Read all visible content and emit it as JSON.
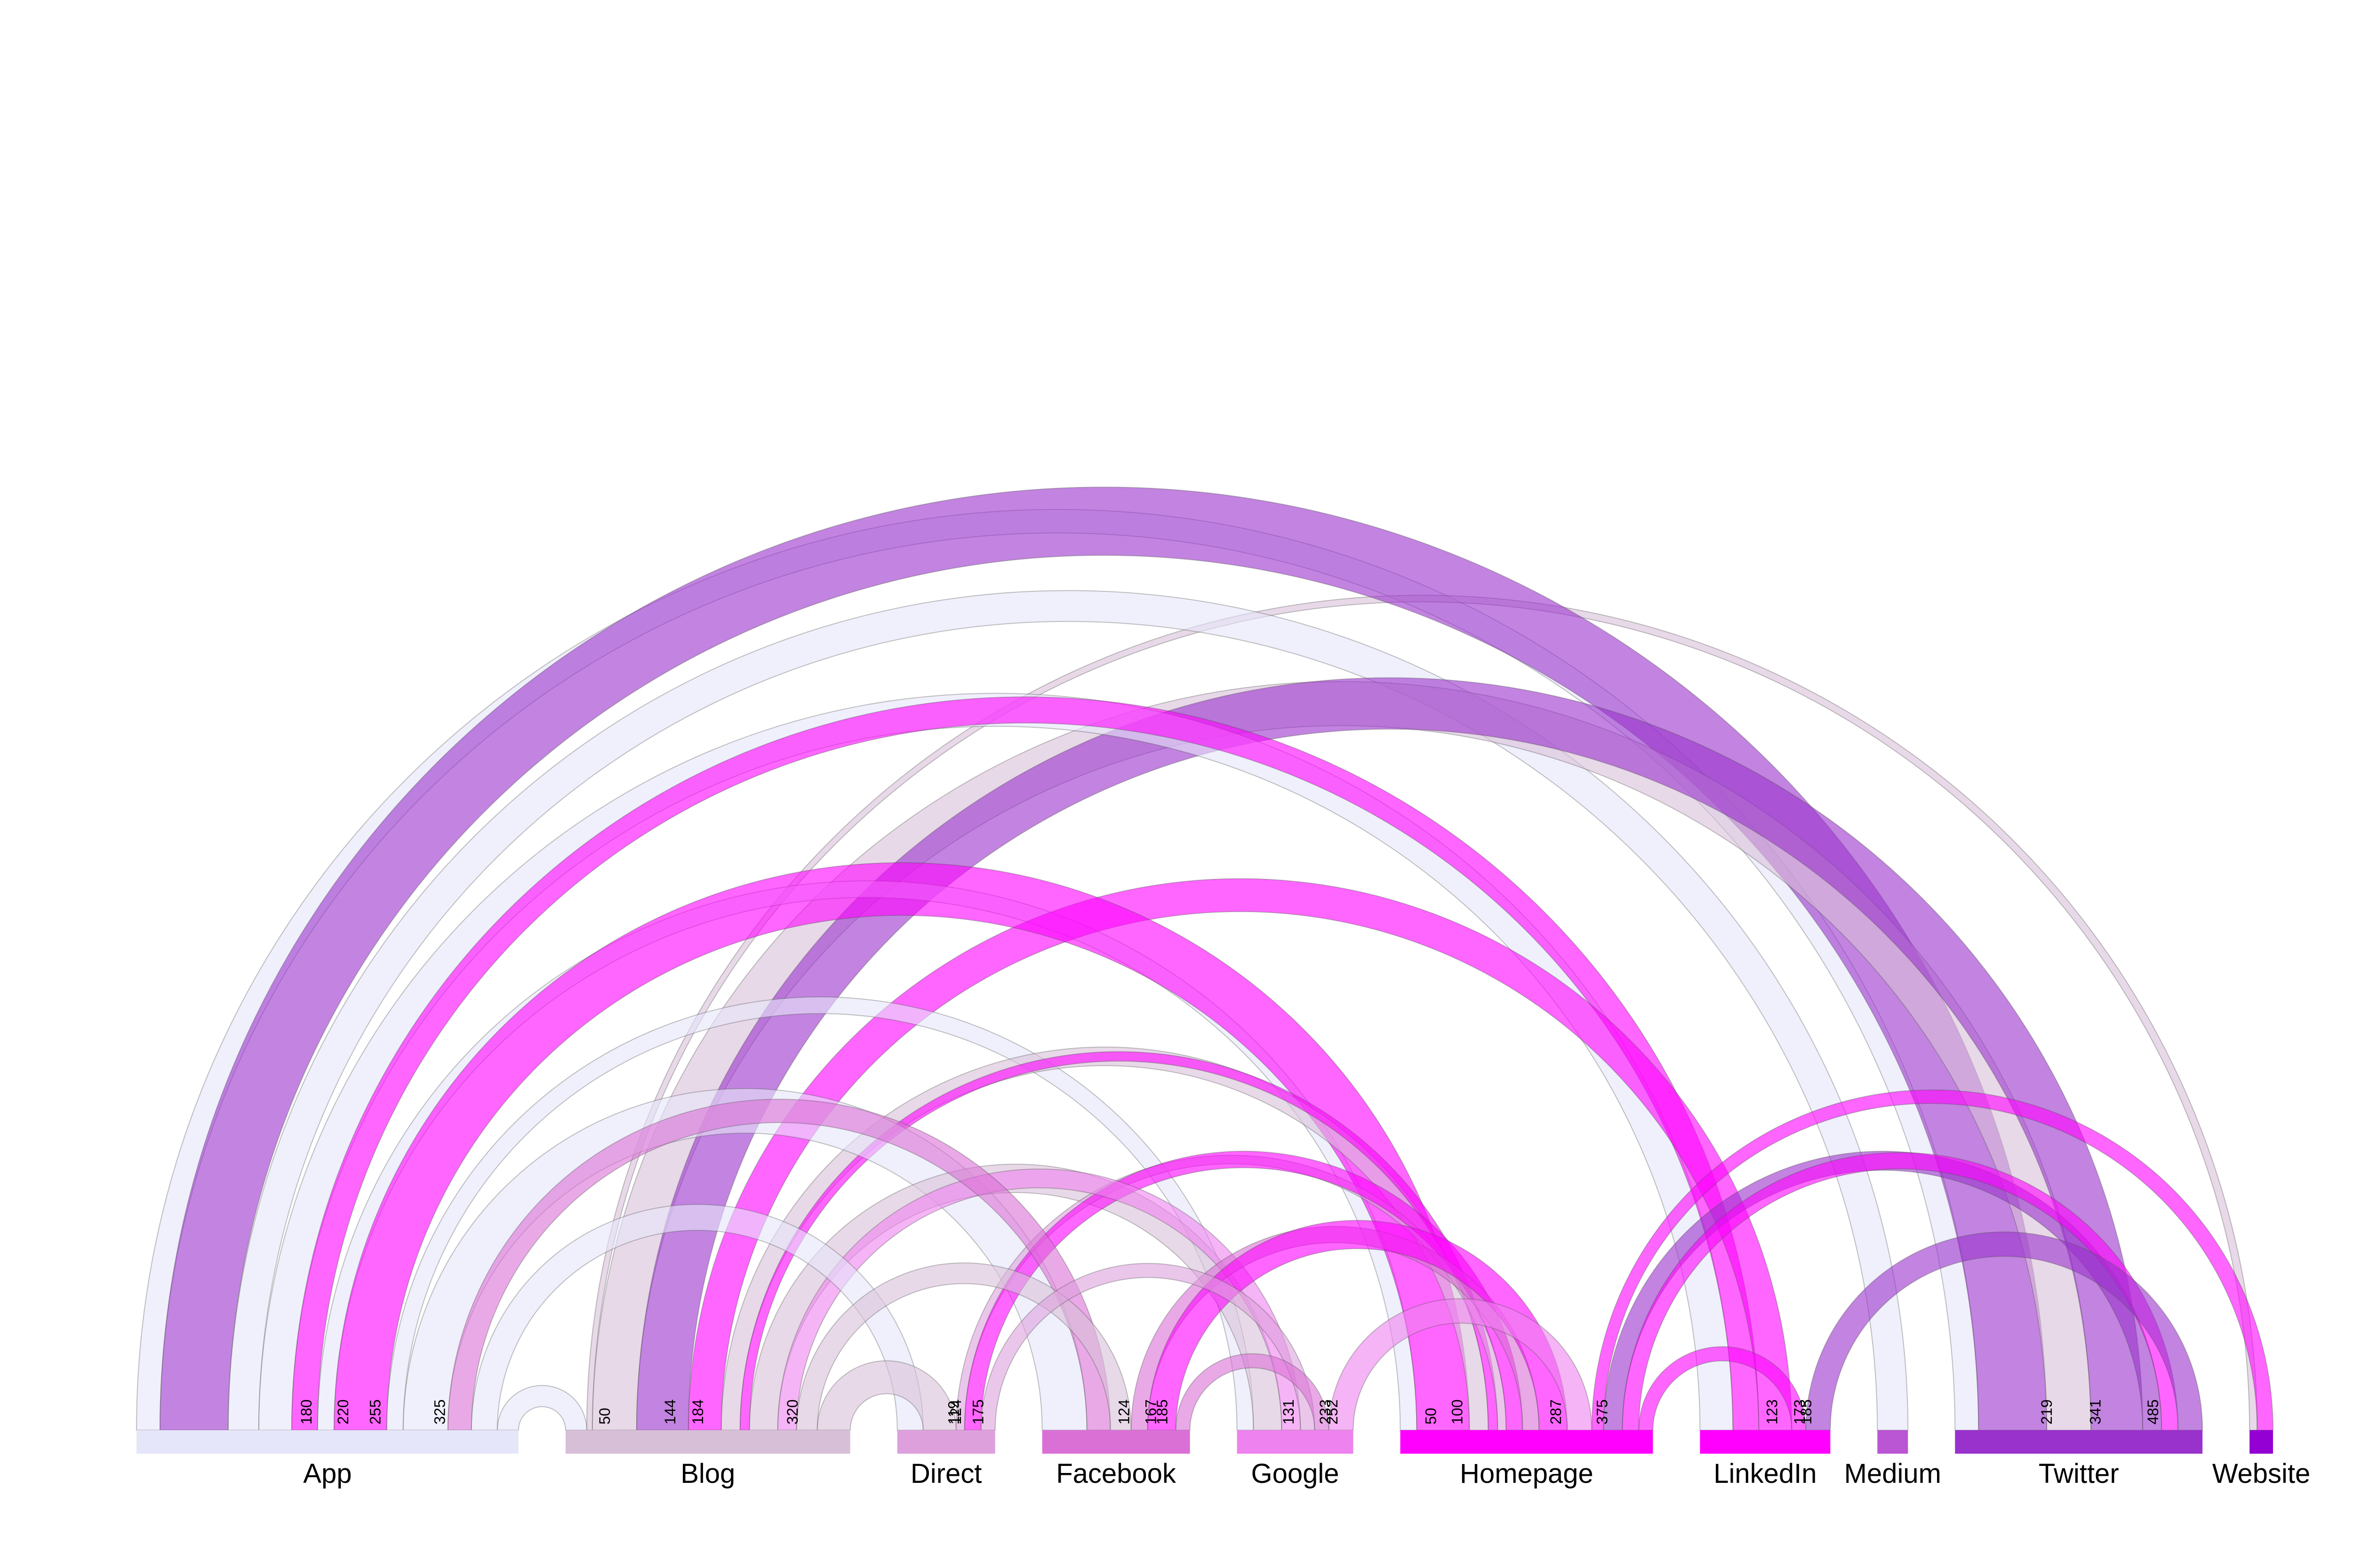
{
  "chart_data": {
    "type": "arc",
    "title": "",
    "nodes": [
      {
        "name": "App",
        "color": "#e6e6fa",
        "ticks": [
          180,
          220,
          255,
          325
        ]
      },
      {
        "name": "Blog",
        "color": "#d8bfd8",
        "ticks": [
          50,
          144,
          184,
          320
        ]
      },
      {
        "name": "Direct",
        "color": "#dda0dd",
        "ticks": [
          119,
          124,
          175
        ]
      },
      {
        "name": "Facebook",
        "color": "#da70d6",
        "ticks": [
          124,
          167,
          185
        ]
      },
      {
        "name": "Google",
        "color": "#ee82ee",
        "ticks": [
          131,
          233,
          252
        ]
      },
      {
        "name": "Homepage",
        "color": "#ff00ff",
        "ticks": [
          50,
          100,
          287,
          375
        ]
      },
      {
        "name": "LinkedIn",
        "color": "#ff00ff",
        "ticks": [
          123,
          173,
          185
        ]
      },
      {
        "name": "Medium",
        "color": "#ba55d3",
        "ticks": []
      },
      {
        "name": "Twitter",
        "color": "#9932cc",
        "ticks": [
          219,
          341,
          485
        ]
      },
      {
        "name": "Website",
        "color": "#9400d3",
        "ticks": []
      }
    ],
    "links": [
      {
        "source": "App",
        "target": "Medium",
        "value": 65
      },
      {
        "source": "App",
        "target": "Homepage",
        "value": 35
      },
      {
        "source": "App",
        "target": "LinkedIn",
        "value": 70
      },
      {
        "source": "App",
        "target": "Google",
        "value": 35
      },
      {
        "source": "App",
        "target": "Direct",
        "value": 55
      },
      {
        "source": "App",
        "target": "Twitter",
        "value": 50
      },
      {
        "source": "App",
        "target": "Facebook",
        "value": 95
      },
      {
        "source": "App",
        "target": "Blog",
        "value": 45
      },
      {
        "source": "Blog",
        "target": "Twitter",
        "value": 94
      },
      {
        "source": "Blog",
        "target": "Website",
        "value": 12
      },
      {
        "source": "Blog",
        "target": "Homepage",
        "value": 40
      },
      {
        "source": "Blog",
        "target": "Facebook",
        "value": 44
      },
      {
        "source": "Blog",
        "target": "Direct",
        "value": 70
      },
      {
        "source": "Blog",
        "target": "Google",
        "value": 60
      },
      {
        "source": "Direct",
        "target": "Homepage",
        "value": 18
      },
      {
        "source": "Facebook",
        "target": "Homepage",
        "value": 35
      },
      {
        "source": "Google",
        "target": "Homepage",
        "value": 52
      },
      {
        "source": "Homepage",
        "target": "Website",
        "value": 25
      },
      {
        "source": "LinkedIn",
        "target": "Homepage",
        "value": 30
      },
      {
        "source": "LinkedIn",
        "target": "App",
        "value": 55
      },
      {
        "source": "LinkedIn",
        "target": "Blog",
        "value": 70
      },
      {
        "source": "Twitter",
        "target": "App",
        "value": 145
      },
      {
        "source": "Twitter",
        "target": "Homepage",
        "value": 40
      },
      {
        "source": "Twitter",
        "target": "Blog",
        "value": 110
      },
      {
        "source": "Twitter",
        "target": "LinkedIn",
        "value": 52
      },
      {
        "source": "Homepage",
        "target": "Twitter",
        "value": 35
      },
      {
        "source": "Homepage",
        "target": "Blog",
        "value": 20
      },
      {
        "source": "Homepage",
        "target": "Facebook",
        "value": 60
      },
      {
        "source": "Homepage",
        "target": "App",
        "value": 112
      },
      {
        "source": "Homepage",
        "target": "Direct",
        "value": 35
      },
      {
        "source": "Google",
        "target": "Blog",
        "value": 40
      },
      {
        "source": "Facebook",
        "target": "App",
        "value": 50
      },
      {
        "source": "Direct",
        "target": "Google",
        "value": 30
      },
      {
        "source": "Facebook",
        "target": "Google",
        "value": 30
      }
    ]
  }
}
